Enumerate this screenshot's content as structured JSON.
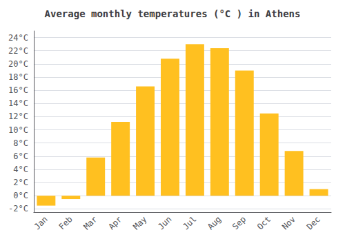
{
  "chart_data": {
    "type": "bar",
    "title": "Average monthly temperatures (°C ) in Athens",
    "categories": [
      "Jan",
      "Feb",
      "Mar",
      "Apr",
      "May",
      "Jun",
      "Jul",
      "Aug",
      "Sep",
      "Oct",
      "Nov",
      "Dec"
    ],
    "values": [
      -1.5,
      -0.5,
      5.8,
      11.2,
      16.6,
      20.8,
      23.0,
      22.4,
      19.0,
      12.5,
      6.8,
      1.0
    ],
    "color": "#FFC020",
    "ylim": [
      -2.5,
      25
    ],
    "yticks": [
      {
        "value": -2,
        "label": "-2°C"
      },
      {
        "value": 0,
        "label": "0°C"
      },
      {
        "value": 2,
        "label": "2°C"
      },
      {
        "value": 4,
        "label": "4°C"
      },
      {
        "value": 6,
        "label": "6°C"
      },
      {
        "value": 8,
        "label": "8°C"
      },
      {
        "value": 10,
        "label": "10°C"
      },
      {
        "value": 12,
        "label": "12°C"
      },
      {
        "value": 14,
        "label": "14°C"
      },
      {
        "value": 16,
        "label": "16°C"
      },
      {
        "value": 18,
        "label": "18°C"
      },
      {
        "value": 20,
        "label": "20°C"
      },
      {
        "value": 22,
        "label": "22°C"
      },
      {
        "value": 24,
        "label": "24°C"
      }
    ],
    "grid": true
  }
}
